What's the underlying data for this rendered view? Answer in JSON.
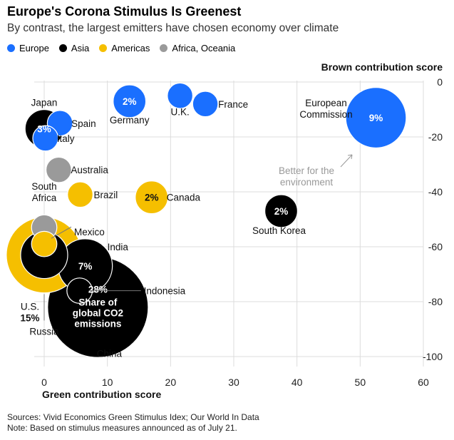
{
  "title": "Europe's Corona Stimulus Is Greenest",
  "subtitle": "By contrast, the largest emitters have chosen economy over climate",
  "legend": [
    {
      "label": "Europe",
      "color": "#1a6fff"
    },
    {
      "label": "Asia",
      "color": "#000000"
    },
    {
      "label": "Americas",
      "color": "#f5bf00"
    },
    {
      "label": "Africa, Oceania",
      "color": "#9a9a9a"
    }
  ],
  "annotation": "Better for the environment",
  "footer": {
    "sources": "Sources: Vivid Economics Green Stimulus Idex; Our World In Data",
    "note": "Note: Based on stimulus measures announced as of July 21."
  },
  "chart_data": {
    "type": "scatter",
    "title": "Europe's Corona Stimulus Is Greenest",
    "xlabel": "Green contribution score",
    "ylabel": "Brown contribution score",
    "xlim": [
      0,
      60
    ],
    "ylim": [
      -100,
      0
    ],
    "x_ticks": [
      "0",
      "10",
      "20",
      "30",
      "40",
      "50",
      "60"
    ],
    "y_ticks": [
      "0",
      "-20",
      "-40",
      "-60",
      "-80",
      "-100"
    ],
    "size_legend": "Share of global CO2 emissions",
    "grid": true,
    "legend_position": "top-left",
    "points": [
      {
        "name": "European Commission",
        "region": "Europe",
        "x": 52.5,
        "y": -13,
        "share_pct": 9,
        "label": "9%"
      },
      {
        "name": "Germany",
        "region": "Europe",
        "x": 13.5,
        "y": -7,
        "share_pct": 2,
        "label": "2%"
      },
      {
        "name": "U.K.",
        "region": "Europe",
        "x": 21.5,
        "y": -5,
        "share_pct": 1
      },
      {
        "name": "France",
        "region": "Europe",
        "x": 25.5,
        "y": -8,
        "share_pct": 1
      },
      {
        "name": "Japan",
        "region": "Asia",
        "x": 0,
        "y": -17,
        "share_pct": 3,
        "label": "3%"
      },
      {
        "name": "Spain",
        "region": "Europe",
        "x": 2.5,
        "y": -15,
        "share_pct": 1
      },
      {
        "name": "Italy",
        "region": "Europe",
        "x": 0.2,
        "y": -20.5,
        "share_pct": 1
      },
      {
        "name": "Australia",
        "region": "Africa, Oceania",
        "x": 2.3,
        "y": -32,
        "share_pct": 1
      },
      {
        "name": "Brazil",
        "region": "Americas",
        "x": 5.7,
        "y": -41,
        "share_pct": 1
      },
      {
        "name": "Canada",
        "region": "Americas",
        "x": 17,
        "y": -42,
        "share_pct": 2,
        "label": "2%"
      },
      {
        "name": "South Korea",
        "region": "Asia",
        "x": 37.5,
        "y": -47,
        "share_pct": 2,
        "label": "2%"
      },
      {
        "name": "South Africa",
        "region": "Africa, Oceania",
        "x": 0,
        "y": -53,
        "share_pct": 1
      },
      {
        "name": "Mexico",
        "region": "Americas",
        "x": 0,
        "y": -59,
        "share_pct": 1
      },
      {
        "name": "U.S.",
        "region": "Americas",
        "x": 0,
        "y": -63,
        "share_pct": 15,
        "label": "15%"
      },
      {
        "name": "Russia",
        "region": "Asia",
        "x": 0,
        "y": -63,
        "share_pct": 5
      },
      {
        "name": "India",
        "region": "Asia",
        "x": 6.5,
        "y": -67,
        "share_pct": 7,
        "label": "7%"
      },
      {
        "name": "Indonesia",
        "region": "Asia",
        "x": 5.6,
        "y": -76,
        "share_pct": 1
      },
      {
        "name": "China",
        "region": "Asia",
        "x": 8.5,
        "y": -82,
        "share_pct": 28,
        "label": "28%"
      }
    ]
  }
}
